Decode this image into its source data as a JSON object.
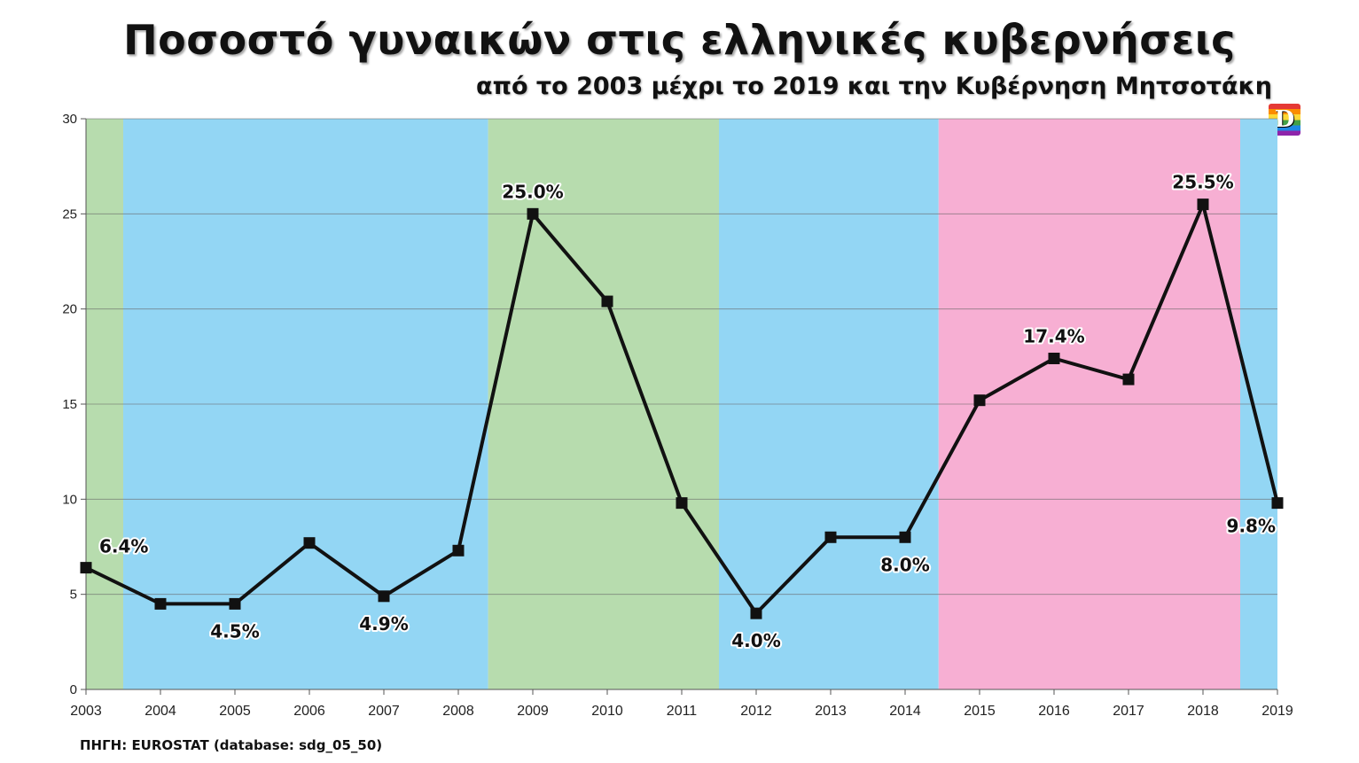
{
  "header": {
    "title": "Ποσοστό γυναικών στις ελληνικές κυβερνήσεις",
    "subtitle": "από το 2003 μέχρι το 2019 και την Κυβέρνηση Μητσοτάκη",
    "logo_text": "D"
  },
  "footer": {
    "source": "ΠΗΓΗ: EUROSTAT (database: sdg_05_50)"
  },
  "chart_data": {
    "type": "line",
    "title": "Ποσοστό γυναικών στις ελληνικές κυβερνήσεις",
    "subtitle": "από το 2003 μέχρι το 2019 και την Κυβέρνηση Μητσοτάκη",
    "xlabel": "",
    "ylabel": "",
    "categories": [
      "2003",
      "2004",
      "2005",
      "2006",
      "2007",
      "2008",
      "2009",
      "2010",
      "2011",
      "2012",
      "2013",
      "2014",
      "2015",
      "2016",
      "2017",
      "2018",
      "2019"
    ],
    "series": [
      {
        "values": [
          6.4,
          4.5,
          4.5,
          7.7,
          4.9,
          7.3,
          25.0,
          20.4,
          9.8,
          4.0,
          8.0,
          8.0,
          15.2,
          17.4,
          16.3,
          25.5,
          9.8
        ],
        "color": "#111111"
      }
    ],
    "data_labels": [
      {
        "index": 0,
        "text": "6.4%"
      },
      {
        "index": 2,
        "text": "4.5%"
      },
      {
        "index": 4,
        "text": "4.9%"
      },
      {
        "index": 6,
        "text": "25.0%"
      },
      {
        "index": 9,
        "text": "4.0%"
      },
      {
        "index": 11,
        "text": "8.0%"
      },
      {
        "index": 13,
        "text": "17.4%"
      },
      {
        "index": 15,
        "text": "25.5%"
      },
      {
        "index": 16,
        "text": "9.8%"
      }
    ],
    "ylim": [
      0,
      30
    ],
    "yticks": [
      0,
      5,
      10,
      15,
      20,
      25,
      30
    ],
    "grid": true,
    "legend": "none",
    "background_bands": [
      {
        "from": "2003",
        "to": "2003.5",
        "color": "#b7dcae"
      },
      {
        "from": "2003.5",
        "to": "2008.4",
        "color": "#93d6f4"
      },
      {
        "from": "2008.4",
        "to": "2011.5",
        "color": "#b7dcae"
      },
      {
        "from": "2011.5",
        "to": "2014.45",
        "color": "#93d6f4"
      },
      {
        "from": "2014.45",
        "to": "2018.5",
        "color": "#f7afd3"
      },
      {
        "from": "2018.5",
        "to": "2019",
        "color": "#93d6f4"
      }
    ]
  }
}
